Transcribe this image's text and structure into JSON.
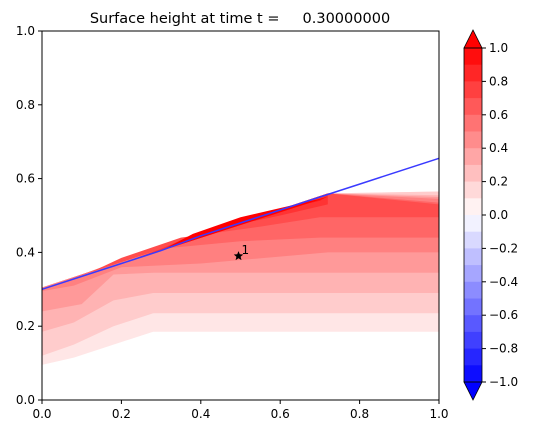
{
  "chart_data": {
    "type": "filled-contour",
    "title": "Surface height at time t =     0.30000000",
    "xlabel": "",
    "ylabel": "",
    "xlim": [
      0,
      1
    ],
    "ylim": [
      0,
      1
    ],
    "x_ticks": [
      "0.0",
      "0.2",
      "0.4",
      "0.6",
      "0.8",
      "1.0"
    ],
    "y_ticks": [
      "0.0",
      "0.2",
      "0.4",
      "0.6",
      "0.8",
      "1.0"
    ],
    "shoreline": {
      "color": "#3a3aff",
      "points": [
        [
          0.0,
          0.3
        ],
        [
          0.1,
          0.335
        ],
        [
          0.2,
          0.37
        ],
        [
          0.3,
          0.405
        ],
        [
          0.4,
          0.445
        ],
        [
          0.5,
          0.48
        ],
        [
          0.6,
          0.515
        ],
        [
          0.7,
          0.55
        ],
        [
          0.8,
          0.585
        ],
        [
          0.9,
          0.62
        ],
        [
          1.0,
          0.655
        ]
      ]
    },
    "marker": {
      "label": "1",
      "x": 0.495,
      "y": 0.39
    },
    "regions": [
      {
        "level": 0.1,
        "points": [
          [
            0.0,
            0.305
          ],
          [
            0.72,
            0.56
          ],
          [
            1.0,
            0.565
          ],
          [
            1.0,
            0.185
          ],
          [
            0.28,
            0.185
          ],
          [
            0.18,
            0.15
          ],
          [
            0.08,
            0.115
          ],
          [
            0.0,
            0.095
          ]
        ]
      },
      {
        "level": 0.2,
        "points": [
          [
            0.0,
            0.305
          ],
          [
            0.72,
            0.56
          ],
          [
            1.0,
            0.565
          ],
          [
            1.0,
            0.235
          ],
          [
            0.28,
            0.235
          ],
          [
            0.18,
            0.2
          ],
          [
            0.08,
            0.15
          ],
          [
            0.0,
            0.12
          ]
        ]
      },
      {
        "level": 0.3,
        "points": [
          [
            0.0,
            0.305
          ],
          [
            0.72,
            0.56
          ],
          [
            1.0,
            0.555
          ],
          [
            1.0,
            0.29
          ],
          [
            0.28,
            0.29
          ],
          [
            0.18,
            0.27
          ],
          [
            0.08,
            0.21
          ],
          [
            0.0,
            0.185
          ]
        ]
      },
      {
        "level": 0.4,
        "points": [
          [
            0.0,
            0.305
          ],
          [
            0.72,
            0.56
          ],
          [
            1.0,
            0.55
          ],
          [
            1.0,
            0.345
          ],
          [
            0.28,
            0.345
          ],
          [
            0.18,
            0.34
          ],
          [
            0.1,
            0.26
          ],
          [
            0.0,
            0.24
          ]
        ]
      },
      {
        "level": 0.5,
        "points": [
          [
            0.0,
            0.305
          ],
          [
            0.72,
            0.56
          ],
          [
            1.0,
            0.545
          ],
          [
            1.0,
            0.4
          ],
          [
            0.72,
            0.4
          ],
          [
            0.4,
            0.37
          ],
          [
            0.2,
            0.36
          ],
          [
            0.08,
            0.31
          ],
          [
            0.0,
            0.295
          ]
        ]
      },
      {
        "level": 0.6,
        "points": [
          [
            0.05,
            0.32
          ],
          [
            0.72,
            0.56
          ],
          [
            1.0,
            0.535
          ],
          [
            1.0,
            0.44
          ],
          [
            0.7,
            0.44
          ],
          [
            0.5,
            0.43
          ],
          [
            0.3,
            0.41
          ],
          [
            0.15,
            0.36
          ]
        ]
      },
      {
        "level": 0.7,
        "points": [
          [
            0.12,
            0.345
          ],
          [
            0.72,
            0.56
          ],
          [
            1.0,
            0.53
          ],
          [
            1.0,
            0.495
          ],
          [
            0.7,
            0.495
          ],
          [
            0.55,
            0.47
          ],
          [
            0.35,
            0.44
          ],
          [
            0.2,
            0.385
          ]
        ]
      },
      {
        "level": 0.8,
        "points": [
          [
            0.2,
            0.37
          ],
          [
            0.72,
            0.555
          ],
          [
            0.72,
            0.53
          ],
          [
            0.6,
            0.5
          ],
          [
            0.4,
            0.455
          ],
          [
            0.3,
            0.41
          ]
        ]
      },
      {
        "level": 0.9,
        "points": [
          [
            0.26,
            0.39
          ],
          [
            0.72,
            0.552
          ],
          [
            0.7,
            0.54
          ],
          [
            0.5,
            0.49
          ],
          [
            0.36,
            0.43
          ]
        ]
      },
      {
        "level": 1.0,
        "points": [
          [
            0.3,
            0.405
          ],
          [
            0.72,
            0.55
          ],
          [
            0.5,
            0.495
          ],
          [
            0.38,
            0.45
          ]
        ]
      }
    ],
    "colorbar": {
      "ticks": [
        "1.0",
        "0.8",
        "0.6",
        "0.4",
        "0.2",
        "0.0",
        "−0.2",
        "−0.4",
        "−0.6",
        "−0.8",
        "−1.0"
      ],
      "levels": [
        1.0,
        0.9,
        0.8,
        0.7,
        0.6,
        0.5,
        0.4,
        0.3,
        0.2,
        0.1,
        0.0,
        -0.1,
        -0.2,
        -0.3,
        -0.4,
        -0.5,
        -0.6,
        -0.7,
        -0.8,
        -0.9,
        -1.0
      ],
      "extend": "both",
      "colormap": "bwr"
    }
  }
}
